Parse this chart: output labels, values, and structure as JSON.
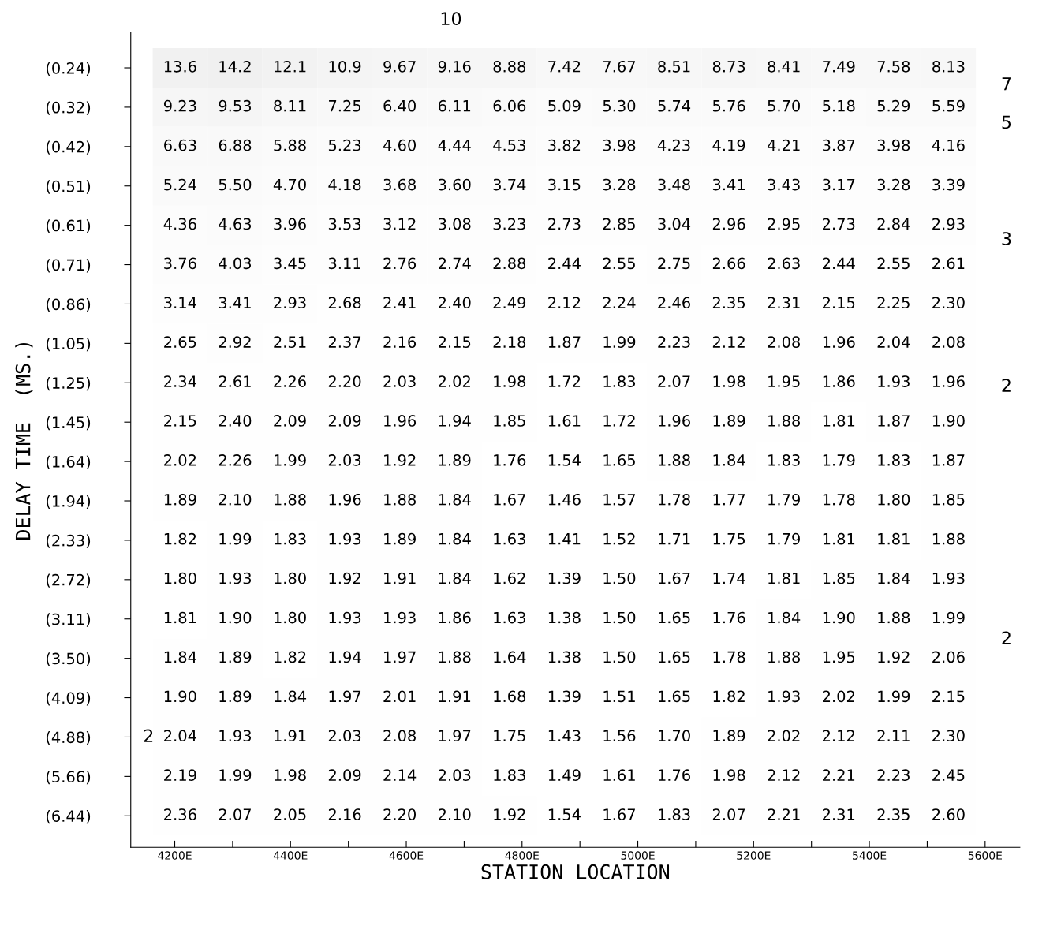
{
  "chart_data": {
    "type": "heatmap",
    "xlabel": "STATION LOCATION",
    "ylabel": "DELAY TIME  (MS.)",
    "categories": [
      null,
      null,
      null,
      null,
      null,
      null,
      null,
      null,
      null,
      null,
      null,
      null,
      null,
      null,
      null
    ],
    "y_categories": [
      "(0.24)",
      "(0.32)",
      "(0.42)",
      "(0.51)",
      "(0.61)",
      "(0.71)",
      "(0.86)",
      "(1.05)",
      "(1.25)",
      "(1.45)",
      "(1.64)",
      "(1.94)",
      "(2.33)",
      "(2.72)",
      "(3.11)",
      "(3.50)",
      "(4.09)",
      "(4.88)",
      "(5.66)",
      "(6.44)"
    ],
    "x2lim": [
      4124,
      5660
    ],
    "x2ticks": [
      {
        "value": 4200,
        "label": "4200E"
      },
      {
        "value": 4300,
        "label": null
      },
      {
        "value": 4400,
        "label": "4400E"
      },
      {
        "value": 4500,
        "label": null
      },
      {
        "value": 4600,
        "label": "4600E"
      },
      {
        "value": 4700,
        "label": null
      },
      {
        "value": 4800,
        "label": "4800E"
      },
      {
        "value": 4900,
        "label": null
      },
      {
        "value": 5000,
        "label": "5000E"
      },
      {
        "value": 5100,
        "label": null
      },
      {
        "value": 5200,
        "label": "5200E"
      },
      {
        "value": 5300,
        "label": null
      },
      {
        "value": 5400,
        "label": "5400E"
      },
      {
        "value": 5500,
        "label": null
      },
      {
        "value": 5600,
        "label": "5600E"
      }
    ],
    "cells": [
      [
        13.6,
        14.2,
        12.1,
        10.9,
        9.67,
        9.16,
        8.88,
        7.42,
        7.67,
        8.51,
        8.73,
        8.41,
        7.49,
        7.58,
        8.13
      ],
      [
        9.23,
        9.53,
        8.11,
        7.25,
        6.4,
        6.11,
        6.06,
        5.09,
        5.3,
        5.74,
        5.76,
        5.7,
        5.18,
        5.29,
        5.59
      ],
      [
        6.63,
        6.88,
        5.88,
        5.23,
        4.6,
        4.44,
        4.53,
        3.82,
        3.98,
        4.23,
        4.19,
        4.21,
        3.87,
        3.98,
        4.16
      ],
      [
        5.24,
        5.5,
        4.7,
        4.18,
        3.68,
        3.6,
        3.74,
        3.15,
        3.28,
        3.48,
        3.41,
        3.43,
        3.17,
        3.28,
        3.39
      ],
      [
        4.36,
        4.63,
        3.96,
        3.53,
        3.12,
        3.08,
        3.23,
        2.73,
        2.85,
        3.04,
        2.96,
        2.95,
        2.73,
        2.84,
        2.93
      ],
      [
        3.76,
        4.03,
        3.45,
        3.11,
        2.76,
        2.74,
        2.88,
        2.44,
        2.55,
        2.75,
        2.66,
        2.63,
        2.44,
        2.55,
        2.61
      ],
      [
        3.14,
        3.41,
        2.93,
        2.68,
        2.41,
        2.4,
        2.49,
        2.12,
        2.24,
        2.46,
        2.35,
        2.31,
        2.15,
        2.25,
        2.3
      ],
      [
        2.65,
        2.92,
        2.51,
        2.37,
        2.16,
        2.15,
        2.18,
        1.87,
        1.99,
        2.23,
        2.12,
        2.08,
        1.96,
        2.04,
        2.08
      ],
      [
        2.34,
        2.61,
        2.26,
        2.2,
        2.03,
        2.02,
        1.98,
        1.72,
        1.83,
        2.07,
        1.98,
        1.95,
        1.86,
        1.93,
        1.96
      ],
      [
        2.15,
        2.4,
        2.09,
        2.09,
        1.96,
        1.94,
        1.85,
        1.61,
        1.72,
        1.96,
        1.89,
        1.88,
        1.81,
        1.87,
        1.9
      ],
      [
        2.02,
        2.26,
        1.99,
        2.03,
        1.92,
        1.89,
        1.76,
        1.54,
        1.65,
        1.88,
        1.84,
        1.83,
        1.79,
        1.83,
        1.87
      ],
      [
        1.89,
        2.1,
        1.88,
        1.96,
        1.88,
        1.84,
        1.67,
        1.46,
        1.57,
        1.78,
        1.77,
        1.79,
        1.78,
        1.8,
        1.85
      ],
      [
        1.82,
        1.99,
        1.83,
        1.93,
        1.89,
        1.84,
        1.63,
        1.41,
        1.52,
        1.71,
        1.75,
        1.79,
        1.81,
        1.81,
        1.88
      ],
      [
        1.8,
        1.93,
        1.8,
        1.92,
        1.91,
        1.84,
        1.62,
        1.39,
        1.5,
        1.67,
        1.74,
        1.81,
        1.85,
        1.84,
        1.93
      ],
      [
        1.81,
        1.9,
        1.8,
        1.93,
        1.93,
        1.86,
        1.63,
        1.38,
        1.5,
        1.65,
        1.76,
        1.84,
        1.9,
        1.88,
        1.99
      ],
      [
        1.84,
        1.89,
        1.82,
        1.94,
        1.97,
        1.88,
        1.64,
        1.38,
        1.5,
        1.65,
        1.78,
        1.88,
        1.95,
        1.92,
        2.06
      ],
      [
        1.9,
        1.89,
        1.84,
        1.97,
        2.01,
        1.91,
        1.68,
        1.39,
        1.51,
        1.65,
        1.82,
        1.93,
        2.02,
        1.99,
        2.15
      ],
      [
        2.04,
        1.93,
        1.91,
        2.03,
        2.08,
        1.97,
        1.75,
        1.43,
        1.56,
        1.7,
        1.89,
        2.02,
        2.12,
        2.11,
        2.3
      ],
      [
        2.19,
        1.99,
        1.98,
        2.09,
        2.14,
        2.03,
        1.83,
        1.49,
        1.61,
        1.76,
        1.98,
        2.12,
        2.21,
        2.23,
        2.45
      ],
      [
        2.36,
        2.07,
        2.05,
        2.16,
        2.2,
        2.1,
        1.92,
        1.54,
        1.67,
        1.83,
        2.07,
        2.21,
        2.31,
        2.35,
        2.6
      ]
    ],
    "cell_labels": [
      [
        "13.6",
        "14.2",
        "12.1",
        "10.9",
        "9.67",
        "9.16",
        "8.88",
        "7.42",
        "7.67",
        "8.51",
        "8.73",
        "8.41",
        "7.49",
        "7.58",
        "8.13"
      ],
      [
        "9.23",
        "9.53",
        "8.11",
        "7.25",
        "6.40",
        "6.11",
        "6.06",
        "5.09",
        "5.30",
        "5.74",
        "5.76",
        "5.70",
        "5.18",
        "5.29",
        "5.59"
      ],
      [
        "6.63",
        "6.88",
        "5.88",
        "5.23",
        "4.60",
        "4.44",
        "4.53",
        "3.82",
        "3.98",
        "4.23",
        "4.19",
        "4.21",
        "3.87",
        "3.98",
        "4.16"
      ],
      [
        "5.24",
        "5.50",
        "4.70",
        "4.18",
        "3.68",
        "3.60",
        "3.74",
        "3.15",
        "3.28",
        "3.48",
        "3.41",
        "3.43",
        "3.17",
        "3.28",
        "3.39"
      ],
      [
        "4.36",
        "4.63",
        "3.96",
        "3.53",
        "3.12",
        "3.08",
        "3.23",
        "2.73",
        "2.85",
        "3.04",
        "2.96",
        "2.95",
        "2.73",
        "2.84",
        "2.93"
      ],
      [
        "3.76",
        "4.03",
        "3.45",
        "3.11",
        "2.76",
        "2.74",
        "2.88",
        "2.44",
        "2.55",
        "2.75",
        "2.66",
        "2.63",
        "2.44",
        "2.55",
        "2.61"
      ],
      [
        "3.14",
        "3.41",
        "2.93",
        "2.68",
        "2.41",
        "2.40",
        "2.49",
        "2.12",
        "2.24",
        "2.46",
        "2.35",
        "2.31",
        "2.15",
        "2.25",
        "2.30"
      ],
      [
        "2.65",
        "2.92",
        "2.51",
        "2.37",
        "2.16",
        "2.15",
        "2.18",
        "1.87",
        "1.99",
        "2.23",
        "2.12",
        "2.08",
        "1.96",
        "2.04",
        "2.08"
      ],
      [
        "2.34",
        "2.61",
        "2.26",
        "2.20",
        "2.03",
        "2.02",
        "1.98",
        "1.72",
        "1.83",
        "2.07",
        "1.98",
        "1.95",
        "1.86",
        "1.93",
        "1.96"
      ],
      [
        "2.15",
        "2.40",
        "2.09",
        "2.09",
        "1.96",
        "1.94",
        "1.85",
        "1.61",
        "1.72",
        "1.96",
        "1.89",
        "1.88",
        "1.81",
        "1.87",
        "1.90"
      ],
      [
        "2.02",
        "2.26",
        "1.99",
        "2.03",
        "1.92",
        "1.89",
        "1.76",
        "1.54",
        "1.65",
        "1.88",
        "1.84",
        "1.83",
        "1.79",
        "1.83",
        "1.87"
      ],
      [
        "1.89",
        "2.10",
        "1.88",
        "1.96",
        "1.88",
        "1.84",
        "1.67",
        "1.46",
        "1.57",
        "1.78",
        "1.77",
        "1.79",
        "1.78",
        "1.80",
        "1.85"
      ],
      [
        "1.82",
        "1.99",
        "1.83",
        "1.93",
        "1.89",
        "1.84",
        "1.63",
        "1.41",
        "1.52",
        "1.71",
        "1.75",
        "1.79",
        "1.81",
        "1.81",
        "1.88"
      ],
      [
        "1.80",
        "1.93",
        "1.80",
        "1.92",
        "1.91",
        "1.84",
        "1.62",
        "1.39",
        "1.50",
        "1.67",
        "1.74",
        "1.81",
        "1.85",
        "1.84",
        "1.93"
      ],
      [
        "1.81",
        "1.90",
        "1.80",
        "1.93",
        "1.93",
        "1.86",
        "1.63",
        "1.38",
        "1.50",
        "1.65",
        "1.76",
        "1.84",
        "1.90",
        "1.88",
        "1.99"
      ],
      [
        "1.84",
        "1.89",
        "1.82",
        "1.94",
        "1.97",
        "1.88",
        "1.64",
        "1.38",
        "1.50",
        "1.65",
        "1.78",
        "1.88",
        "1.95",
        "1.92",
        "2.06"
      ],
      [
        "1.90",
        "1.89",
        "1.84",
        "1.97",
        "2.01",
        "1.91",
        "1.68",
        "1.39",
        "1.51",
        "1.65",
        "1.82",
        "1.93",
        "2.02",
        "1.99",
        "2.15"
      ],
      [
        "2.04",
        "1.93",
        "1.91",
        "2.03",
        "2.08",
        "1.97",
        "1.75",
        "1.43",
        "1.56",
        "1.70",
        "1.89",
        "2.02",
        "2.12",
        "2.11",
        "2.30"
      ],
      [
        "2.19",
        "1.99",
        "1.98",
        "2.09",
        "2.14",
        "2.03",
        "1.83",
        "1.49",
        "1.61",
        "1.76",
        "1.98",
        "2.12",
        "2.21",
        "2.23",
        "2.45"
      ],
      [
        "2.36",
        "2.07",
        "2.05",
        "2.16",
        "2.20",
        "2.10",
        "1.92",
        "1.54",
        "1.67",
        "1.83",
        "2.07",
        "2.21",
        "2.31",
        "2.35",
        "2.60"
      ]
    ],
    "annotations": [
      "10",
      "7",
      "5",
      "3",
      "2",
      "2",
      "2"
    ]
  }
}
